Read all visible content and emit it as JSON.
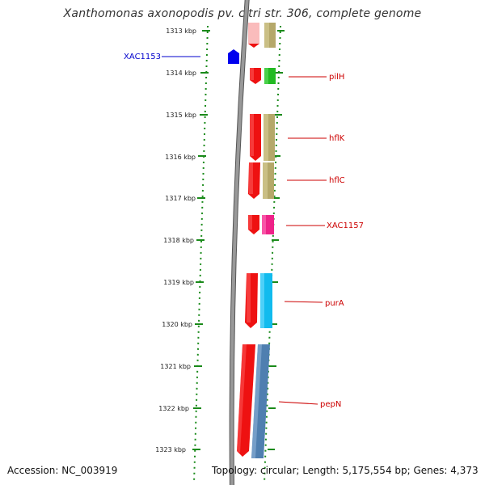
{
  "title": "Xanthomonas axonopodis pv. citri str. 306, complete genome",
  "footer": {
    "accession": "Accession: NC_003919",
    "summary": "Topology: circular; Length: 5,175,554 bp; Genes: 4,373"
  },
  "ruler": {
    "ticks": [
      {
        "label": "1313 kbp"
      },
      {
        "label": "1314 kbp"
      },
      {
        "label": "1315 kbp"
      },
      {
        "label": "1316 kbp"
      },
      {
        "label": "1317 kbp"
      },
      {
        "label": "1318 kbp"
      },
      {
        "label": "1319 kbp"
      },
      {
        "label": "1320 kbp"
      },
      {
        "label": "1321 kbp"
      },
      {
        "label": "1322 kbp"
      },
      {
        "label": "1323 kbp"
      }
    ]
  },
  "genes": [
    {
      "label": "XAC1153",
      "color": "#0000cc"
    },
    {
      "label": "pilH",
      "color": "#cc0000"
    },
    {
      "label": "hflK",
      "color": "#cc0000"
    },
    {
      "label": "hflC",
      "color": "#cc0000"
    },
    {
      "label": "XAC1157",
      "color": "#cc0000"
    },
    {
      "label": "purA",
      "color": "#cc0000"
    },
    {
      "label": "pepN",
      "color": "#cc0000"
    }
  ],
  "colors": {
    "ruler_green": "#1a8a1a",
    "backbone_gray": "#888888",
    "gene_red": "#ee1111",
    "label_red": "#cc0000",
    "label_blue": "#0000cc",
    "khaki": "#b5a86a",
    "green_block": "#22bb22",
    "pink_block": "#ee2288",
    "cyan_block": "#11bbee",
    "steel_block": "#4f7fb0"
  }
}
